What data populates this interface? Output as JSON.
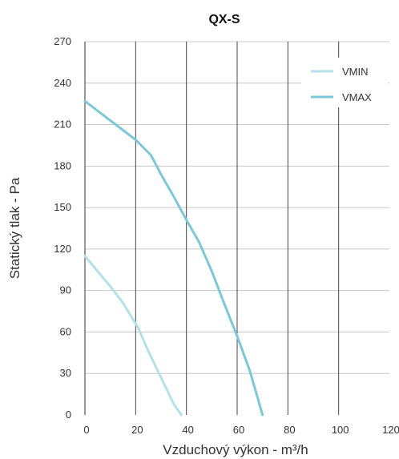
{
  "chart_data": {
    "type": "line",
    "title": "QX-S",
    "xlabel": "Vzduchový výkon - m³/h",
    "ylabel": "Statický tlak - Pa",
    "xlim": [
      0,
      120
    ],
    "ylim": [
      0,
      270
    ],
    "xticks": [
      "0",
      "20",
      "40",
      "60",
      "80",
      "100",
      "120"
    ],
    "yticks": [
      "0",
      "30",
      "60",
      "90",
      "120",
      "150",
      "180",
      "210",
      "240",
      "270"
    ],
    "grid": true,
    "legend_position": "top-right",
    "series": [
      {
        "name": "VMIN",
        "color": "#b4e0e8",
        "points": [
          [
            0,
            115
          ],
          [
            5,
            104
          ],
          [
            10,
            93
          ],
          [
            15,
            81
          ],
          [
            18,
            72
          ],
          [
            21,
            63
          ],
          [
            25,
            46
          ],
          [
            30,
            27
          ],
          [
            35,
            8
          ],
          [
            38,
            0
          ]
        ]
      },
      {
        "name": "VMAX",
        "color": "#7cc8d8",
        "points": [
          [
            0,
            227
          ],
          [
            10,
            213
          ],
          [
            20,
            199
          ],
          [
            26,
            188
          ],
          [
            30,
            174
          ],
          [
            35,
            158
          ],
          [
            40,
            141
          ],
          [
            45,
            125
          ],
          [
            50,
            104
          ],
          [
            55,
            80
          ],
          [
            60,
            57
          ],
          [
            65,
            32
          ],
          [
            70,
            0
          ]
        ]
      }
    ]
  }
}
